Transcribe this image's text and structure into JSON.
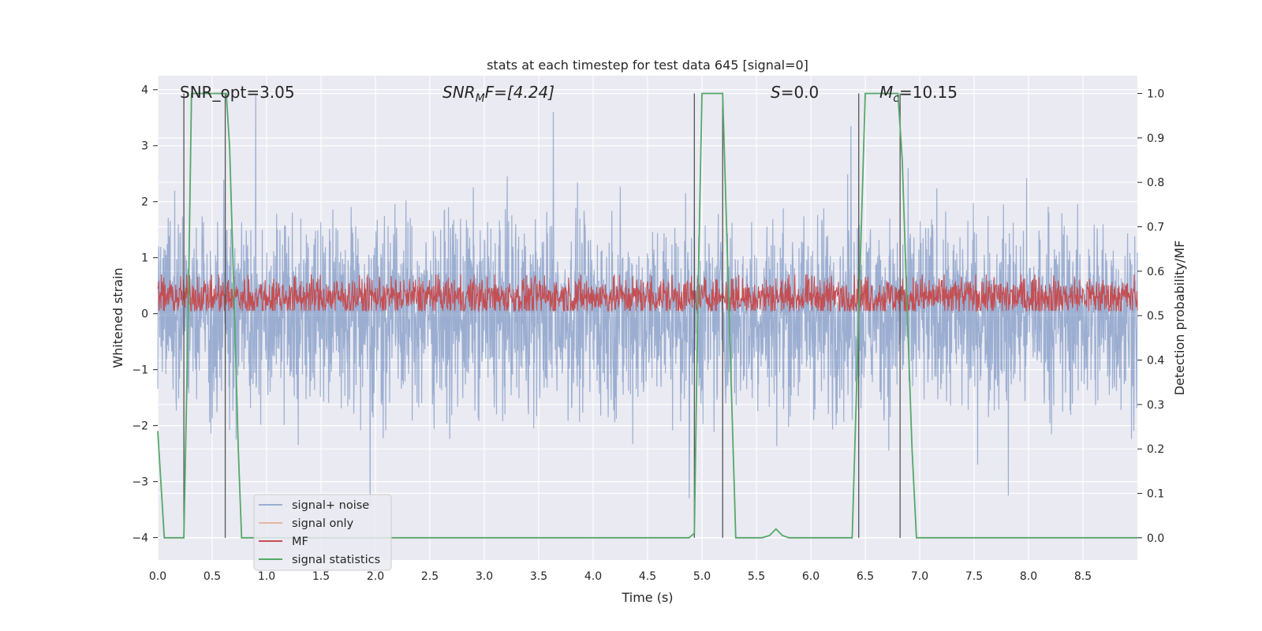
{
  "chart_data": {
    "type": "line",
    "title": "stats at each timestep for test data 645 [signal=0]",
    "xlabel": "Time (s)",
    "ylabel": "Whitened strain",
    "y2label": "Detection probability/MF",
    "xlim": [
      0.0,
      9.0
    ],
    "ylim": [
      -4.4,
      4.25
    ],
    "y2lim": [
      -0.05,
      1.04
    ],
    "xticks": [
      0.0,
      0.5,
      1.0,
      1.5,
      2.0,
      2.5,
      3.0,
      3.5,
      4.0,
      4.5,
      5.0,
      5.5,
      6.0,
      6.5,
      7.0,
      7.5,
      8.0,
      8.5
    ],
    "xtick_labels": [
      "0.0",
      "0.5",
      "1.0",
      "1.5",
      "2.0",
      "2.5",
      "3.0",
      "3.5",
      "4.0",
      "4.5",
      "5.0",
      "5.5",
      "6.0",
      "6.5",
      "7.0",
      "7.5",
      "8.0",
      "8.5"
    ],
    "yticks": [
      -4,
      -3,
      -2,
      -1,
      0,
      1,
      2,
      3,
      4
    ],
    "ytick_labels": [
      "−4",
      "−3",
      "−2",
      "−1",
      "0",
      "1",
      "2",
      "3",
      "4"
    ],
    "y2ticks": [
      0.0,
      0.1,
      0.2,
      0.3,
      0.4,
      0.5,
      0.6,
      0.7,
      0.8,
      0.9,
      1.0
    ],
    "y2tick_labels": [
      "0.0",
      "0.1",
      "0.2",
      "0.3",
      "0.4",
      "0.5",
      "0.6",
      "0.7",
      "0.8",
      "0.9",
      "1.0"
    ],
    "annotations": [
      {
        "id": "snr-opt",
        "text": "SNR_opt=3.05"
      },
      {
        "id": "snr-mf",
        "text": "SNR_MF=[4.24]",
        "prefix": "SNR",
        "sub": "M",
        "suffix": "F=[4.24]"
      },
      {
        "id": "s-value",
        "text": "S=0.0",
        "prefix": "S",
        "suffix": "=0.0"
      },
      {
        "id": "mc-value",
        "text": "M_c=10.15",
        "prefix": "M",
        "sub": "c",
        "suffix": "=10.15"
      }
    ],
    "noise_band": {
      "center": 0.0,
      "typical_amplitude": 1.5,
      "max_positive_spikes": [
        3.9,
        3.6,
        3.35
      ],
      "max_negative_spikes": [
        -3.45,
        -3.3,
        -3.25
      ]
    },
    "mf_band": {
      "center": 0.3,
      "low": 0.05,
      "high": 0.7
    },
    "vertical_markers_x": [
      0.24,
      0.62,
      4.93,
      5.19,
      6.44,
      6.82
    ],
    "series": [
      {
        "name": "signal+ noise",
        "color": "#4c72b0",
        "opacity": 0.5,
        "axis": "left"
      },
      {
        "name": "signal only",
        "color": "#dd8452",
        "opacity": 0.5,
        "axis": "left",
        "values": []
      },
      {
        "name": "MF",
        "color": "#c44e52",
        "axis": "left"
      },
      {
        "name": "signal statistics",
        "color": "#55a868",
        "axis": "right",
        "x": [
          0.0,
          0.06,
          0.22,
          0.24,
          0.28,
          0.31,
          0.6,
          0.63,
          0.66,
          0.7,
          0.74,
          0.77,
          4.88,
          4.93,
          4.96,
          5.0,
          5.19,
          5.25,
          5.31,
          5.55,
          5.62,
          5.68,
          5.74,
          5.8,
          6.38,
          6.44,
          6.5,
          6.8,
          6.84,
          6.88,
          6.93,
          6.97,
          9.0
        ],
        "y": [
          0.24,
          0.0,
          0.0,
          0.0,
          0.5,
          1.0,
          1.0,
          1.0,
          0.88,
          0.55,
          0.2,
          0.0,
          0.0,
          0.01,
          0.5,
          1.0,
          1.0,
          0.5,
          0.0,
          0.0,
          0.005,
          0.02,
          0.005,
          0.0,
          0.0,
          0.5,
          1.0,
          1.0,
          0.85,
          0.55,
          0.2,
          0.0,
          0.0
        ]
      }
    ],
    "legend_position": "lower-left"
  }
}
